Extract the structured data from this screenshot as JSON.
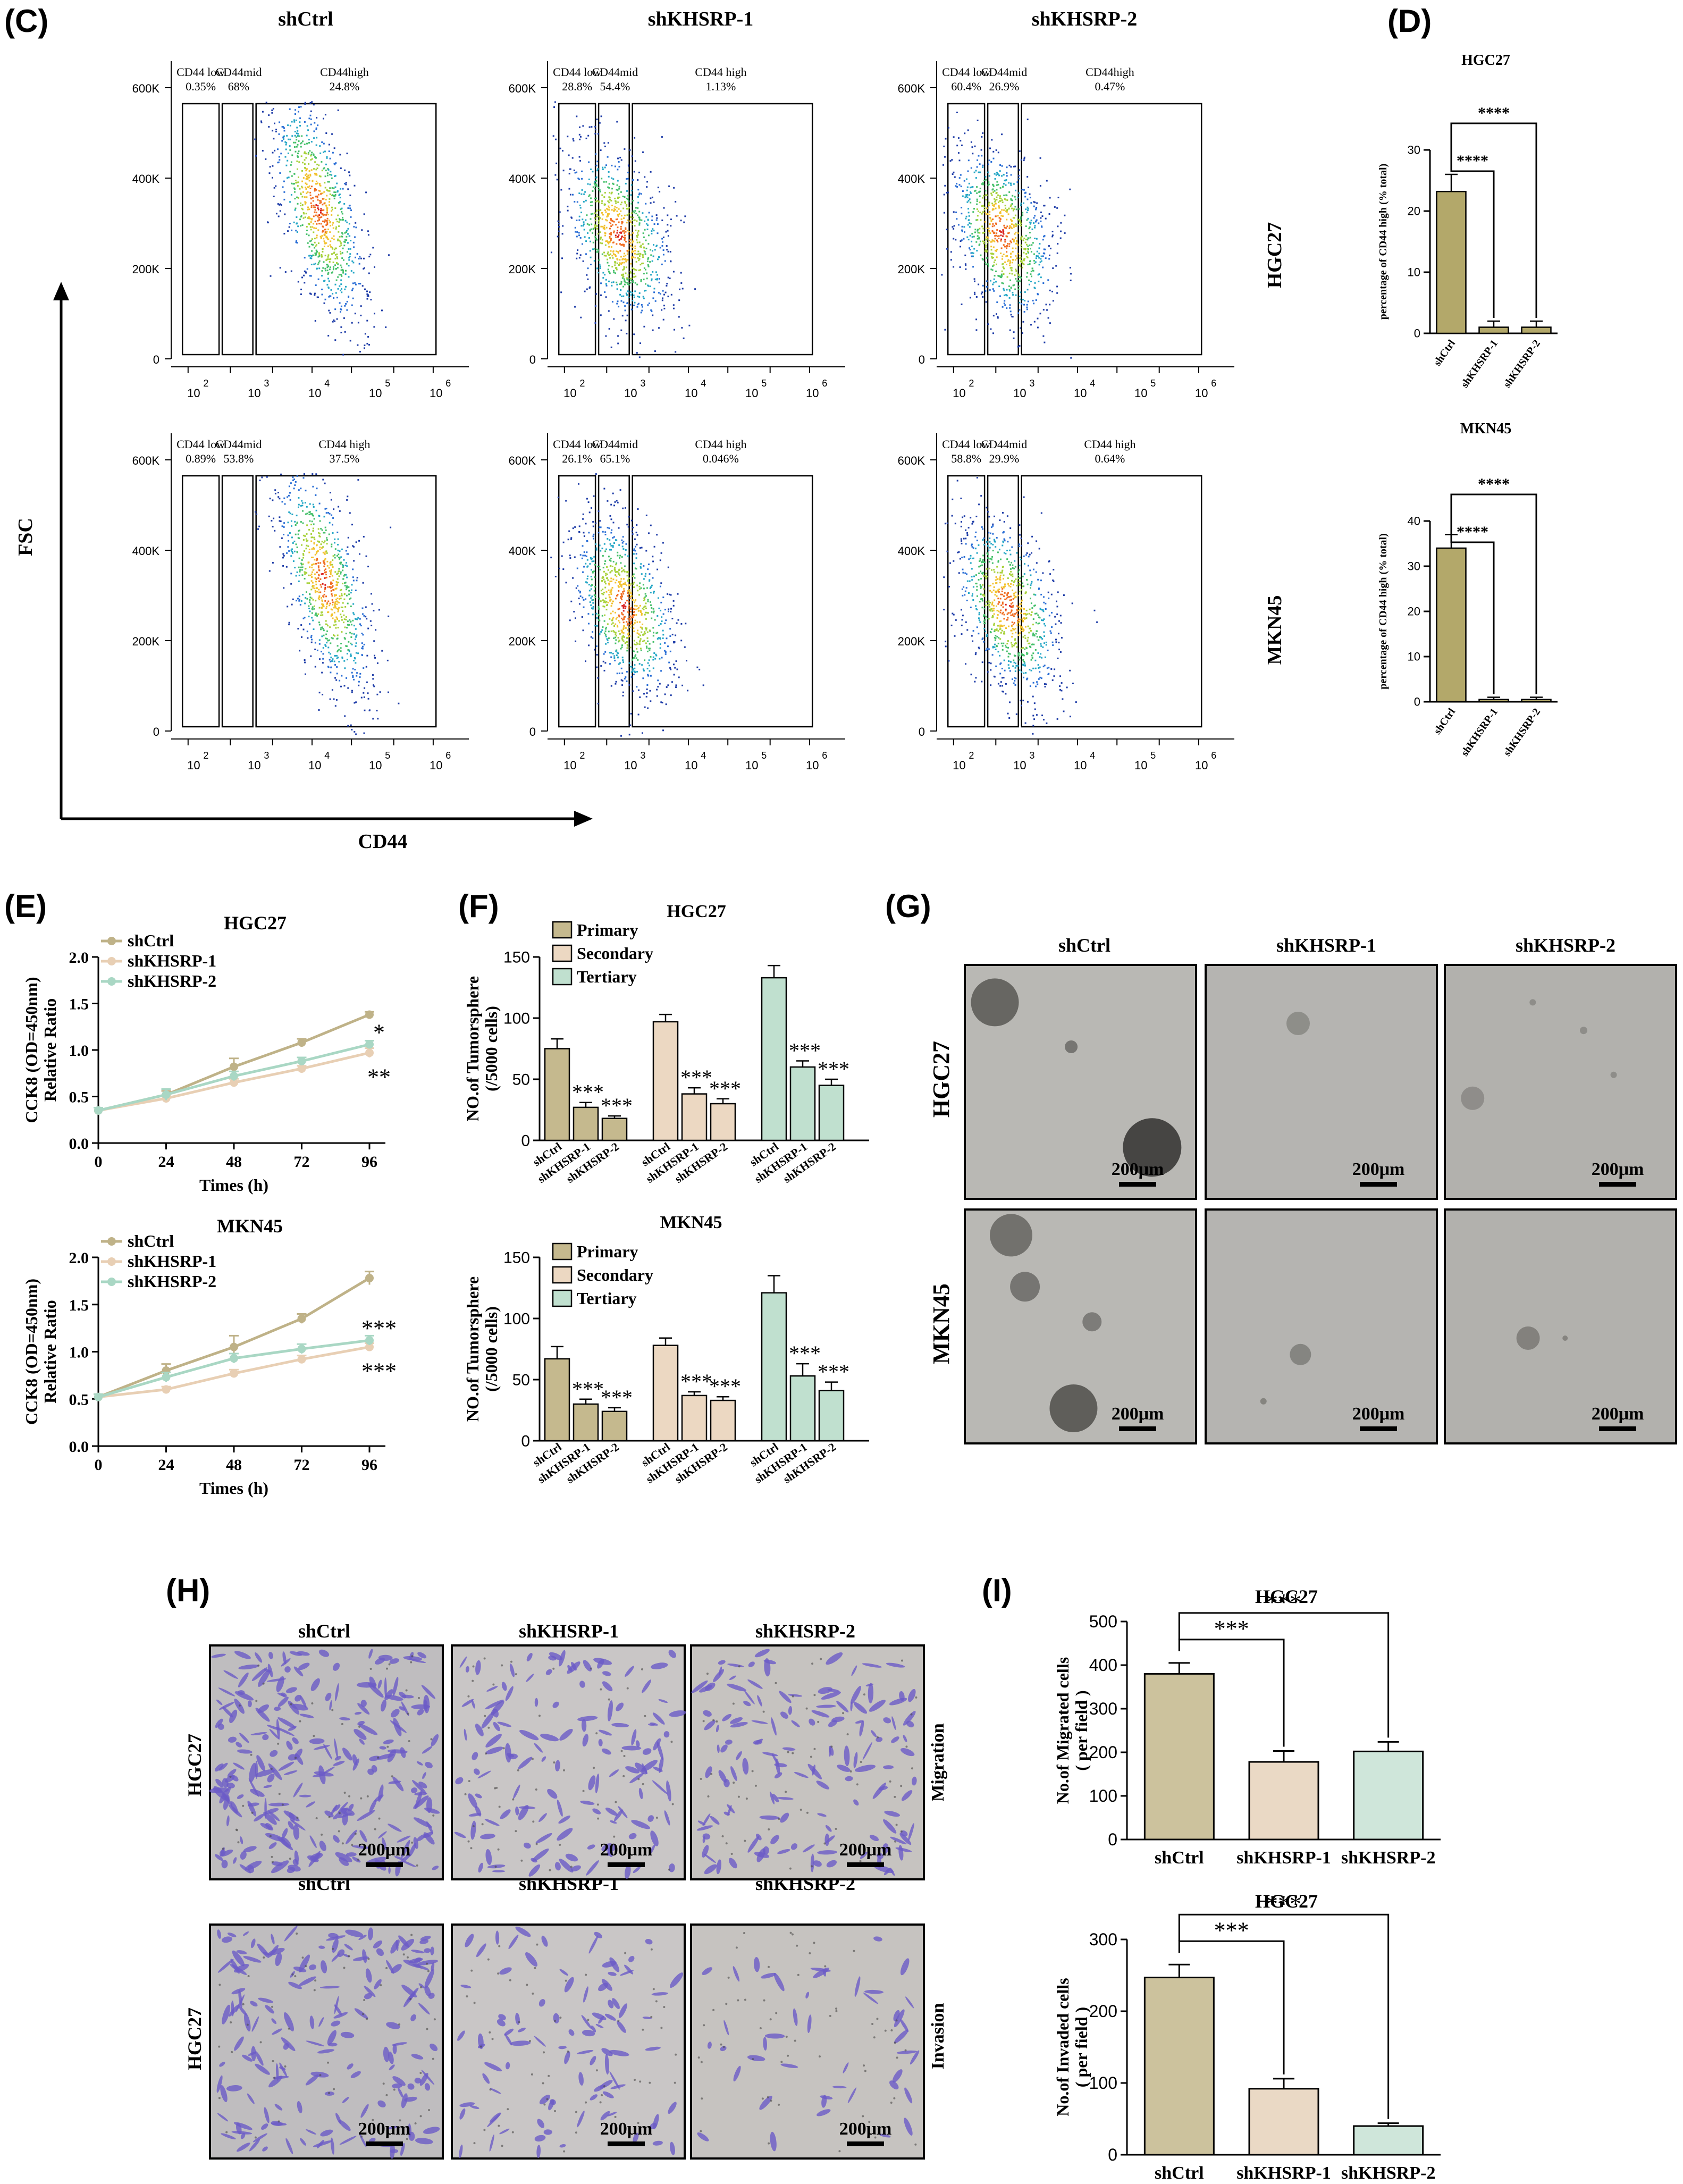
{
  "panels": {
    "C": "(C)",
    "D": "(D)",
    "E": "(E)",
    "F": "(F)",
    "G": "(G)",
    "H": "(H)",
    "I": "(I)"
  },
  "flow": {
    "columns": [
      "shCtrl",
      "shKHSRP-1",
      "shKHSRP-2"
    ],
    "rows": [
      "HGC27",
      "MKN45"
    ],
    "y_label": "FSC",
    "x_label": "CD44",
    "y_ticks": [
      "600K",
      "400K",
      "200K",
      "0"
    ],
    "x_ticks": [
      "2",
      "3",
      "4",
      "5",
      "6"
    ],
    "x_tick_base": "10",
    "gates": [
      [
        {
          "low": "CD44 low",
          "low_v": "0.35%",
          "mid": "CD44mid",
          "mid_v": "68%",
          "high": "CD44high",
          "high_v": "24.8%"
        },
        {
          "low": "CD44 low",
          "low_v": "28.8%",
          "mid": "CD44mid",
          "mid_v": "54.4%",
          "high": "CD44 high",
          "high_v": "1.13%"
        },
        {
          "low": "CD44 low",
          "low_v": "60.4%",
          "mid": "CD44mid",
          "mid_v": "26.9%",
          "high": "CD44high",
          "high_v": "0.47%"
        }
      ],
      [
        {
          "low": "CD44 low",
          "low_v": "0.89%",
          "mid": "CD44mid",
          "mid_v": "53.8%",
          "high": "CD44 high",
          "high_v": "37.5%"
        },
        {
          "low": "CD44 low",
          "low_v": "26.1%",
          "mid": "CD44mid",
          "mid_v": "65.1%",
          "high": "CD44 high",
          "high_v": "0.046%"
        },
        {
          "low": "CD44 low",
          "low_v": "58.8%",
          "mid": "CD44mid",
          "mid_v": "29.9%",
          "high": "CD44 high",
          "high_v": "0.64%"
        }
      ]
    ]
  },
  "chart_data": [
    {
      "id": "D-HGC27",
      "type": "bar",
      "title": "HGC27",
      "categories": [
        "shCtrl",
        "shKHSRP-1",
        "shKHSRP-2"
      ],
      "values": [
        23.2,
        1.0,
        1.0
      ],
      "errors": [
        2.8,
        1.0,
        1.0
      ],
      "ylabel": "percentage of CD44 high (% total)",
      "ylim": [
        0,
        30
      ],
      "yticks": [
        0,
        10,
        20,
        30
      ],
      "sig": [
        "****",
        "****"
      ],
      "color": "#b3a86a"
    },
    {
      "id": "D-MKN45",
      "type": "bar",
      "title": "MKN45",
      "categories": [
        "shCtrl",
        "shKHSRP-1",
        "shKHSRP-2"
      ],
      "values": [
        34.0,
        0.5,
        0.5
      ],
      "errors": [
        3.0,
        0.5,
        0.5
      ],
      "ylabel": "percentage of CD44 high (% total)",
      "ylim": [
        0,
        40
      ],
      "yticks": [
        0,
        10,
        20,
        30,
        40
      ],
      "sig": [
        "****",
        "****"
      ],
      "color": "#b3a86a"
    },
    {
      "id": "E-HGC27",
      "type": "line",
      "title": "HGC27",
      "x": [
        0,
        24,
        48,
        72,
        96
      ],
      "xticks": [
        0,
        24,
        48,
        72,
        96
      ],
      "xlabel": "Times (h)",
      "ylabel_1": "CCK8 (OD=450nm)",
      "ylabel_2": "Relative Ratio",
      "ylim": [
        0,
        2.0
      ],
      "yticks": [
        "0.0",
        "0.5",
        "1.0",
        "1.5",
        "2.0"
      ],
      "series": [
        {
          "name": "shCtrl",
          "values": [
            0.35,
            0.52,
            0.82,
            1.08,
            1.38
          ],
          "errors": [
            0.03,
            0.04,
            0.09,
            0.04,
            0.03
          ],
          "color": "#bfb288"
        },
        {
          "name": "shKHSRP-1",
          "values": [
            0.35,
            0.48,
            0.65,
            0.8,
            0.97
          ],
          "errors": [
            0.03,
            0.03,
            0.04,
            0.03,
            0.05
          ],
          "color": "#e8cfb4"
        },
        {
          "name": "shKHSRP-2",
          "values": [
            0.35,
            0.52,
            0.72,
            0.88,
            1.06
          ],
          "errors": [
            0.03,
            0.06,
            0.05,
            0.04,
            0.04
          ],
          "color": "#a9d7c4"
        }
      ],
      "sig": [
        "*",
        "**"
      ]
    },
    {
      "id": "E-MKN45",
      "type": "line",
      "title": "MKN45",
      "x": [
        0,
        24,
        48,
        72,
        96
      ],
      "xticks": [
        0,
        24,
        48,
        72,
        96
      ],
      "xlabel": "Times (h)",
      "ylabel_1": "CCK8 (OD=450nm)",
      "ylabel_2": "Relative Ratio",
      "ylim": [
        0,
        2.0
      ],
      "yticks": [
        "0.0",
        "0.5",
        "1.0",
        "1.5",
        "2.0"
      ],
      "series": [
        {
          "name": "shCtrl",
          "values": [
            0.52,
            0.8,
            1.05,
            1.35,
            1.78
          ],
          "errors": [
            0.03,
            0.07,
            0.12,
            0.05,
            0.07
          ],
          "color": "#bfb288"
        },
        {
          "name": "shKHSRP-1",
          "values": [
            0.52,
            0.6,
            0.77,
            0.92,
            1.05
          ],
          "errors": [
            0.03,
            0.03,
            0.04,
            0.04,
            0.04
          ],
          "color": "#e8cfb4"
        },
        {
          "name": "shKHSRP-2",
          "values": [
            0.52,
            0.73,
            0.93,
            1.03,
            1.12
          ],
          "errors": [
            0.03,
            0.05,
            0.05,
            0.05,
            0.05
          ],
          "color": "#a9d7c4"
        }
      ],
      "sig": [
        "***",
        "***"
      ]
    },
    {
      "id": "F-HGC27",
      "type": "bar",
      "title": "HGC27",
      "groups": [
        "Primary",
        "Secondary",
        "Tertiary"
      ],
      "categories": [
        "shCtrl",
        "shKHSRP-1",
        "shKHSRP-2"
      ],
      "series": [
        {
          "name": "Primary",
          "values": [
            75,
            27,
            18
          ],
          "errors": [
            8,
            4,
            2
          ],
          "color": "#c5b98e"
        },
        {
          "name": "Secondary",
          "values": [
            97,
            38,
            30
          ],
          "errors": [
            6,
            5,
            4
          ],
          "color": "#ecd8c2"
        },
        {
          "name": "Tertiary",
          "values": [
            133,
            60,
            45
          ],
          "errors": [
            10,
            5,
            5
          ],
          "color": "#c0e0cf"
        }
      ],
      "ylabel_1": "NO.of Tumorsphere",
      "ylabel_2": "(/5000 cells)",
      "ylim": [
        0,
        150
      ],
      "yticks": [
        0,
        50,
        100,
        150
      ],
      "sig": "***"
    },
    {
      "id": "F-MKN45",
      "type": "bar",
      "title": "MKN45",
      "groups": [
        "Primary",
        "Secondary",
        "Tertiary"
      ],
      "categories": [
        "shCtrl",
        "shKHSRP-1",
        "shKHSRP-2"
      ],
      "series": [
        {
          "name": "Primary",
          "values": [
            67,
            30,
            24
          ],
          "errors": [
            10,
            4,
            3
          ],
          "color": "#c5b98e"
        },
        {
          "name": "Secondary",
          "values": [
            78,
            37,
            33
          ],
          "errors": [
            6,
            3,
            3
          ],
          "color": "#ecd8c2"
        },
        {
          "name": "Tertiary",
          "values": [
            121,
            53,
            41
          ],
          "errors": [
            14,
            10,
            7
          ],
          "color": "#c0e0cf"
        }
      ],
      "ylabel_1": "NO.of Tumorsphere",
      "ylabel_2": "(/5000 cells)",
      "ylim": [
        0,
        150
      ],
      "yticks": [
        0,
        50,
        100,
        150
      ],
      "sig": "***"
    },
    {
      "id": "I-Migration",
      "type": "bar",
      "title": "HGC27",
      "categories": [
        "shCtrl",
        "shKHSRP-1",
        "shKHSRP-2"
      ],
      "values": [
        380,
        178,
        202
      ],
      "errors": [
        25,
        25,
        22
      ],
      "colors": [
        "#ccc29d",
        "#ead9c5",
        "#cfe6da"
      ],
      "ylabel_1": "No.of Migrated cells",
      "ylabel_2": "( per field )",
      "ylim": [
        0,
        500
      ],
      "yticks": [
        0,
        100,
        200,
        300,
        400,
        500
      ],
      "sig": [
        "***",
        "***"
      ]
    },
    {
      "id": "I-Invasion",
      "type": "bar",
      "title": "HGC27",
      "categories": [
        "shCtrl",
        "shKHSRP-1",
        "shKHSRP-2"
      ],
      "values": [
        247,
        92,
        40
      ],
      "errors": [
        18,
        14,
        4
      ],
      "colors": [
        "#ccc29d",
        "#ead9c5",
        "#cfe6da"
      ],
      "ylabel_1": "No.of Invaded cells",
      "ylabel_2": "( per field )",
      "ylim": [
        0,
        300
      ],
      "yticks": [
        0,
        100,
        200,
        300
      ],
      "sig": [
        "***",
        "***"
      ]
    }
  ],
  "sphere": {
    "columns": [
      "shCtrl",
      "shKHSRP-1",
      "shKHSRP-2"
    ],
    "rows": [
      "HGC27",
      "MKN45"
    ],
    "scale": "200μm"
  },
  "transwell": {
    "columns": [
      "shCtrl",
      "shKHSRP-1",
      "shKHSRP-2"
    ],
    "row_label": "HGC27",
    "conditions": [
      "Migration",
      "Invasion"
    ],
    "scale": "200μm"
  }
}
